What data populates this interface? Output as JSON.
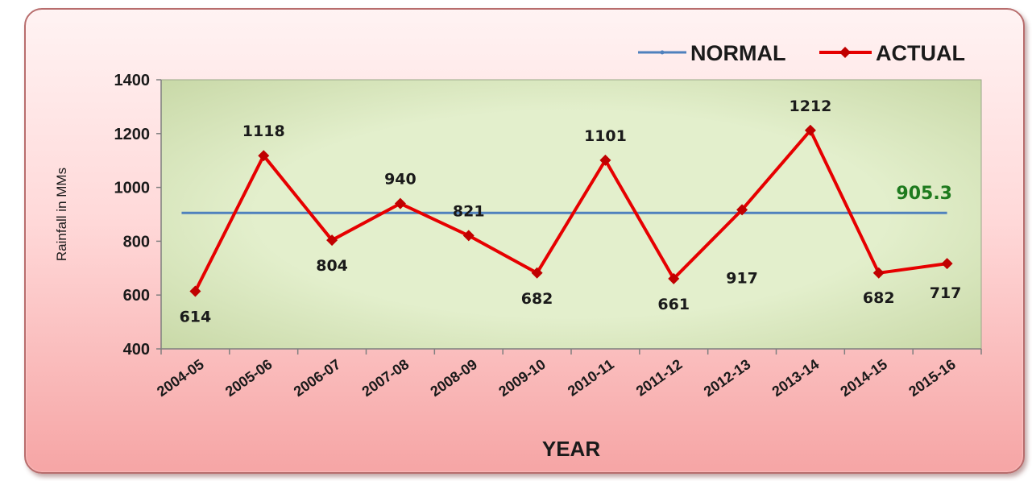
{
  "chart_data": {
    "type": "line",
    "title": "",
    "xlabel": "YEAR",
    "ylabel": "Rainfall in MMs",
    "categories": [
      "2004-05",
      "2005-06",
      "2006-07",
      "2007-08",
      "2008-09",
      "2009-10",
      "2010-11",
      "2011-12",
      "2012-13",
      "2013-14",
      "2014-15",
      "2015-16"
    ],
    "series": [
      {
        "name": "NORMAL",
        "values": [
          905.3,
          905.3,
          905.3,
          905.3,
          905.3,
          905.3,
          905.3,
          905.3,
          905.3,
          905.3,
          905.3,
          905.3
        ],
        "color": "#4f81bd"
      },
      {
        "name": "ACTUAL",
        "values": [
          614,
          1118,
          804,
          940,
          821,
          682,
          1101,
          661,
          917,
          1212,
          682,
          717
        ],
        "color": "#e60000"
      }
    ],
    "normal_value_label": "905.3",
    "normal_label_color": "#1e7a1e",
    "ylim": [
      400,
      1400
    ],
    "yticks": [
      400,
      600,
      800,
      1000,
      1200,
      1400
    ],
    "legend_position": "top-right",
    "plot_background": "#e3efcc",
    "grid": false
  }
}
